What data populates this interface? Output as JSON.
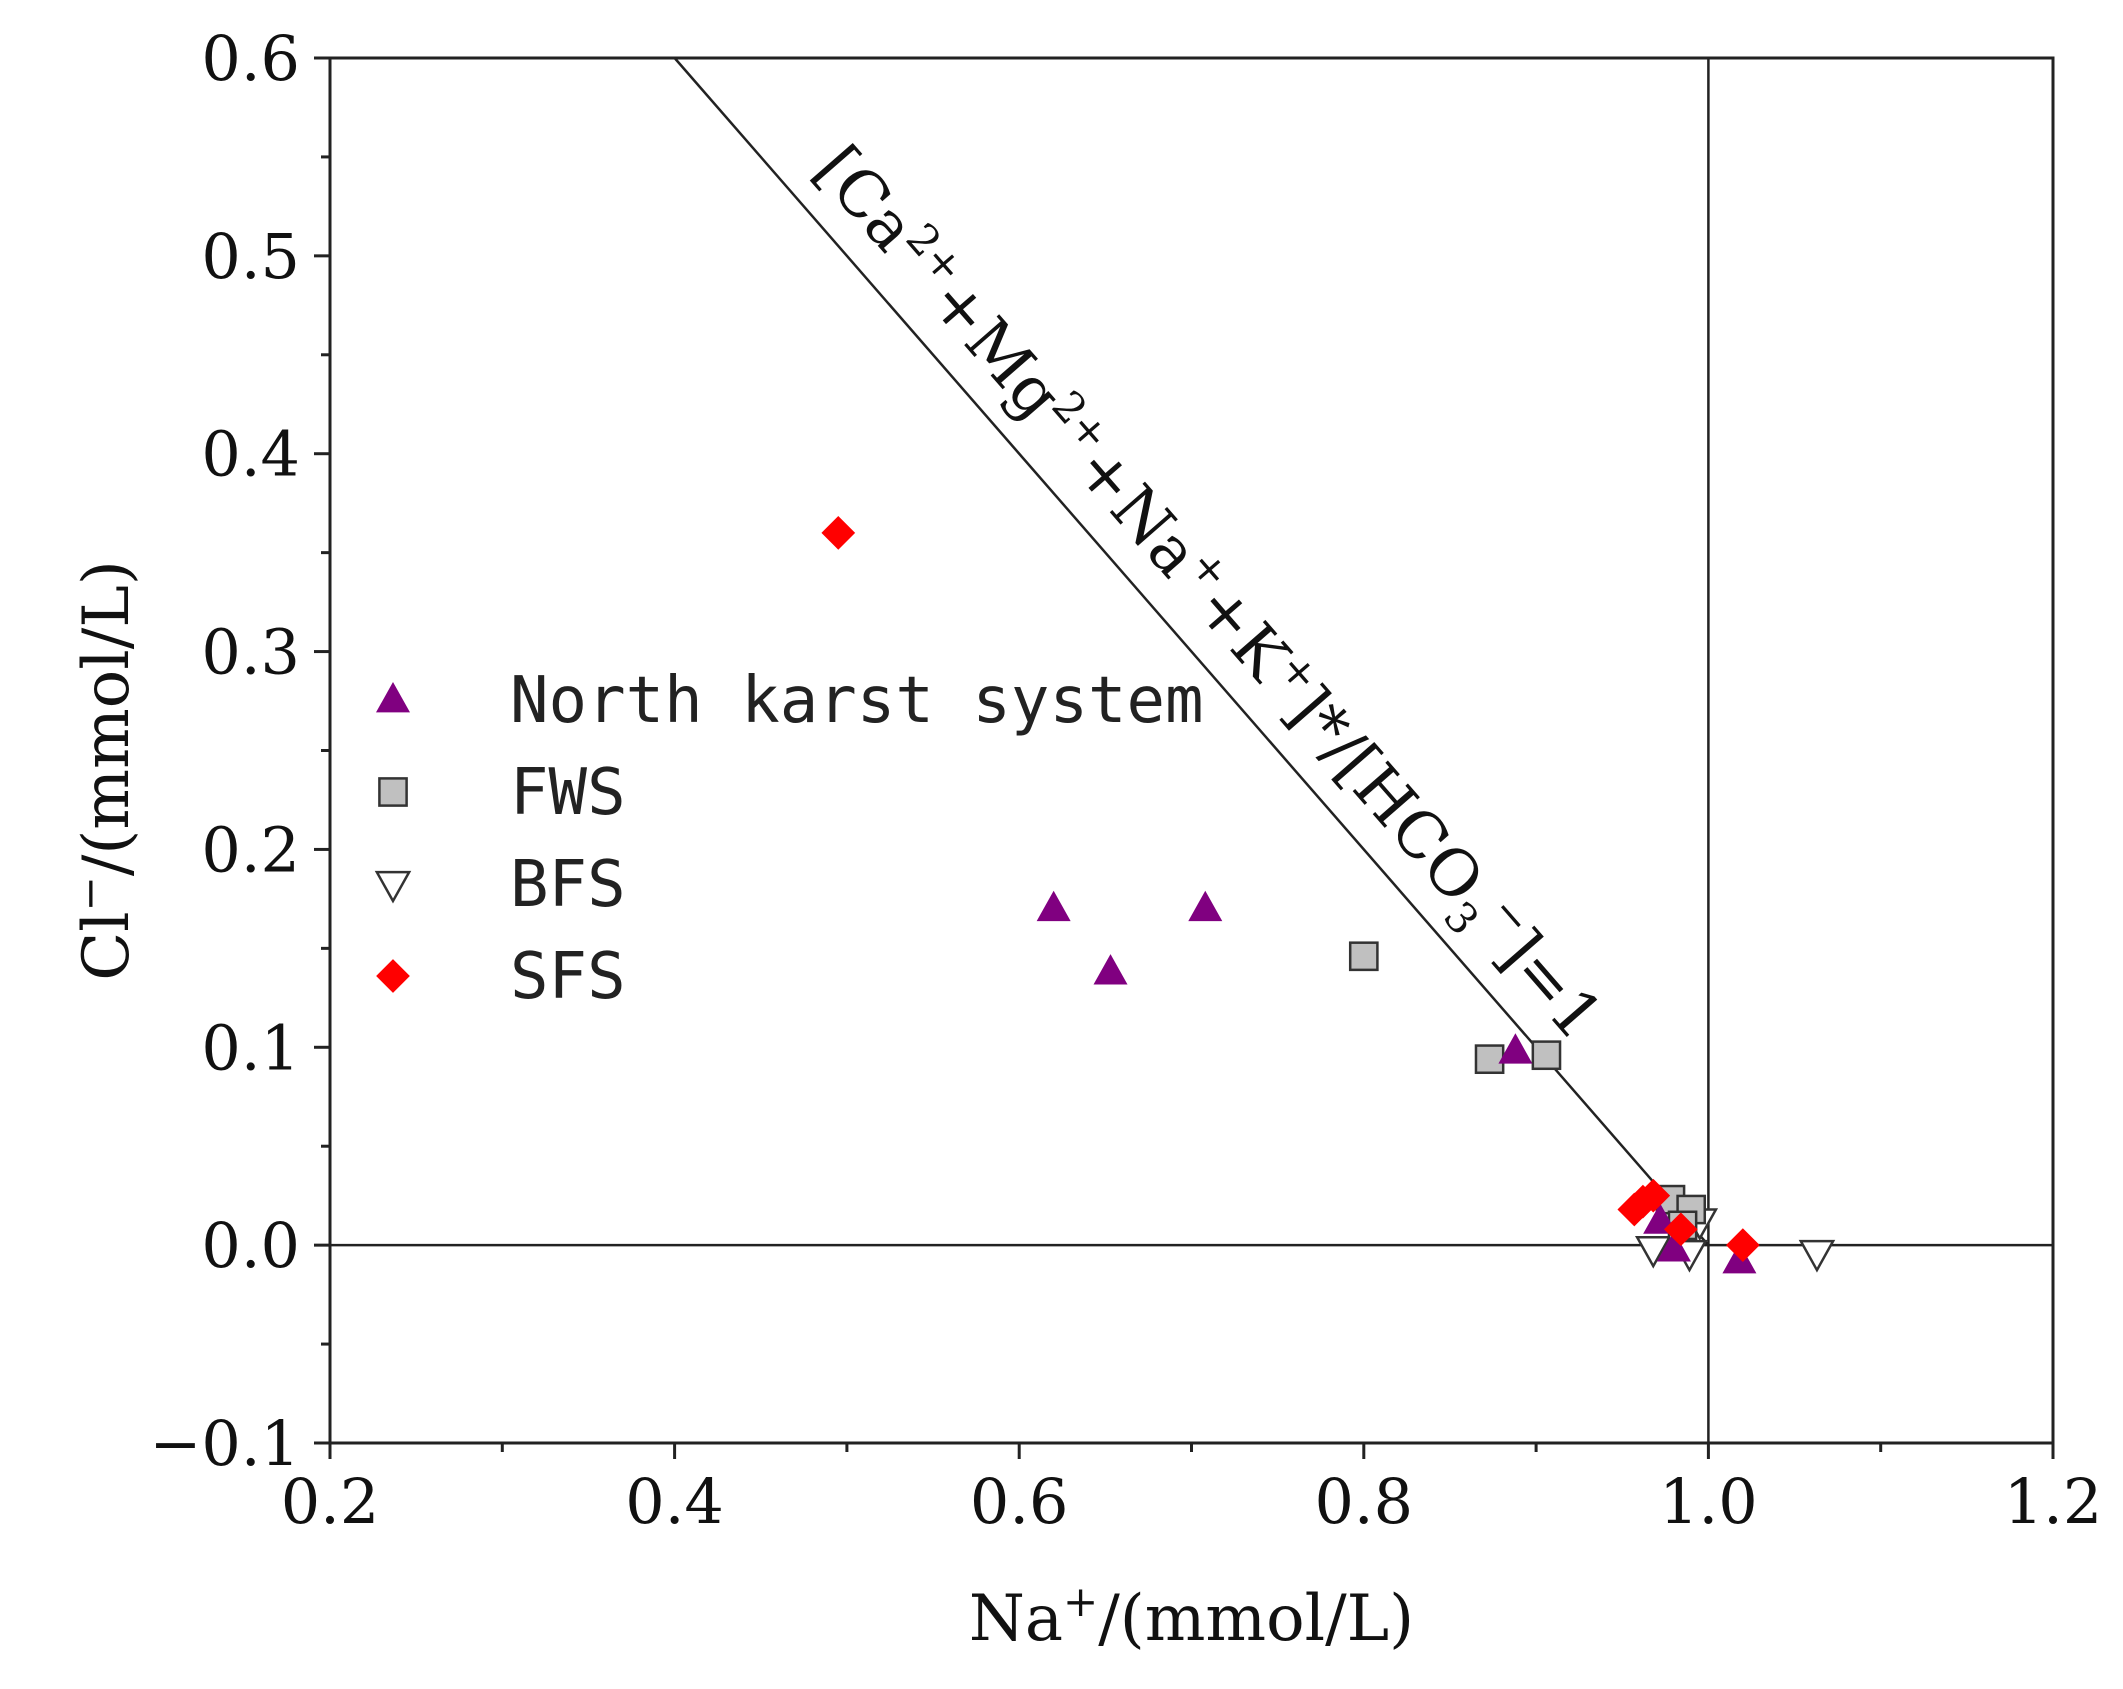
{
  "chart_data": {
    "type": "scatter",
    "title": "",
    "xlabel": {
      "base": "Na",
      "sup": "+",
      "rest": "/(mmol/L)"
    },
    "ylabel": {
      "base": "Cl",
      "sup": "−",
      "rest": "/(mmol/L)"
    },
    "xlim": [
      0.2,
      1.2
    ],
    "ylim": [
      -0.1,
      0.6
    ],
    "x_ticks": [
      0.2,
      0.4,
      0.6,
      0.8,
      1.0,
      1.2
    ],
    "x_tick_labels": [
      "0.2",
      "0.4",
      "0.6",
      "0.8",
      "1.0",
      "1.2"
    ],
    "y_ticks": [
      -0.1,
      0.0,
      0.1,
      0.2,
      0.3,
      0.4,
      0.5,
      0.6
    ],
    "y_tick_labels": [
      "−0.1",
      "0.0",
      "0.1",
      "0.2",
      "0.3",
      "0.4",
      "0.5",
      "0.6"
    ],
    "grid": false,
    "legend_position": "center-left",
    "reference_lines": {
      "horizontal_y": 0.0,
      "vertical_x": 1.0,
      "diagonal_line": [
        [
          0.4,
          0.6
        ],
        [
          1.0,
          0.0
        ]
      ]
    },
    "annotation": {
      "parts": [
        {
          "t": "[Ca",
          "s": "n"
        },
        {
          "t": "2+",
          "s": "sup"
        },
        {
          "t": "+Mg",
          "s": "n"
        },
        {
          "t": "2+",
          "s": "sup"
        },
        {
          "t": "+Na",
          "s": "n"
        },
        {
          "t": "+",
          "s": "sup"
        },
        {
          "t": "+K",
          "s": "n"
        },
        {
          "t": "+",
          "s": "sup"
        },
        {
          "t": "]*/[HCO",
          "s": "n"
        },
        {
          "t": "3",
          "s": "sub"
        },
        {
          "t": "−",
          "s": "sup"
        },
        {
          "t": "]=1",
          "s": "n"
        }
      ]
    },
    "series": [
      {
        "name": "North karst system",
        "marker": "triangle-up",
        "color": "#800080",
        "points": [
          [
            0.62,
            0.17
          ],
          [
            0.653,
            0.138
          ],
          [
            0.708,
            0.17
          ],
          [
            0.888,
            0.098
          ],
          [
            0.972,
            0.012
          ],
          [
            0.98,
            -0.002
          ],
          [
            1.018,
            -0.008
          ]
        ]
      },
      {
        "name": "FWS",
        "marker": "square",
        "color": "#c0c0c0",
        "points": [
          [
            0.8,
            0.146
          ],
          [
            0.873,
            0.094
          ],
          [
            0.906,
            0.096
          ],
          [
            0.978,
            0.023
          ],
          [
            0.99,
            0.018
          ],
          [
            0.985,
            0.01
          ]
        ]
      },
      {
        "name": "BFS",
        "marker": "triangle-down",
        "color": "#ffffff",
        "points": [
          [
            0.968,
            -0.002
          ],
          [
            0.989,
            -0.004
          ],
          [
            0.995,
            0.012
          ],
          [
            1.063,
            -0.004
          ]
        ]
      },
      {
        "name": "SFS",
        "marker": "diamond",
        "color": "#ff0000",
        "points": [
          [
            0.495,
            0.36
          ],
          [
            0.957,
            0.018
          ],
          [
            0.962,
            0.022
          ],
          [
            0.968,
            0.025
          ],
          [
            0.984,
            0.008
          ],
          [
            1.02,
            0.0
          ]
        ]
      }
    ]
  }
}
